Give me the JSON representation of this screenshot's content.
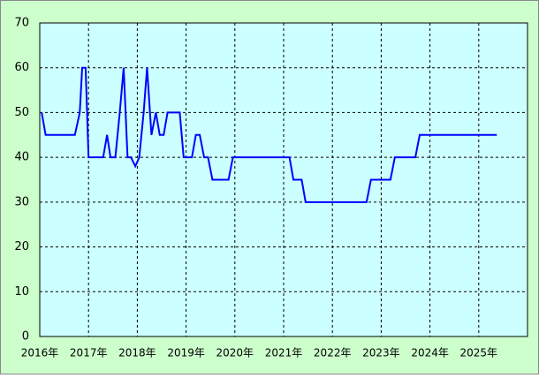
{
  "chart_data": {
    "type": "line",
    "x": [
      2016.04,
      2016.12,
      2016.72,
      2016.82,
      2016.87,
      2016.94,
      2017.0,
      2017.3,
      2017.38,
      2017.45,
      2017.55,
      2017.64,
      2017.72,
      2017.8,
      2017.87,
      2017.96,
      2018.04,
      2018.13,
      2018.2,
      2018.29,
      2018.38,
      2018.46,
      2018.54,
      2018.62,
      2018.87,
      2018.95,
      2019.12,
      2019.2,
      2019.28,
      2019.37,
      2019.45,
      2019.54,
      2019.87,
      2019.96,
      2021.12,
      2021.2,
      2021.37,
      2021.45,
      2022.7,
      2022.79,
      2023.19,
      2023.28,
      2023.7,
      2023.79,
      2025.37
    ],
    "series": [
      {
        "color": "#0000ff",
        "values": [
          50,
          45,
          45,
          50,
          60,
          60,
          40,
          40,
          45,
          40,
          40,
          50,
          60,
          40,
          40,
          38,
          40,
          50,
          60,
          45,
          50,
          45,
          45,
          50,
          50,
          40,
          40,
          45,
          45,
          40,
          40,
          35,
          35,
          40,
          40,
          35,
          35,
          30,
          30,
          35,
          35,
          40,
          40,
          45,
          45
        ]
      }
    ],
    "xlim": [
      2016,
      2026
    ],
    "xticks": [
      {
        "value": 2016,
        "label": "2016年"
      },
      {
        "value": 2017,
        "label": "2017年"
      },
      {
        "value": 2018,
        "label": "2018年"
      },
      {
        "value": 2019,
        "label": "2019年"
      },
      {
        "value": 2020,
        "label": "2020年"
      },
      {
        "value": 2021,
        "label": "2021年"
      },
      {
        "value": 2022,
        "label": "2022年"
      },
      {
        "value": 2023,
        "label": "2023年"
      },
      {
        "value": 2024,
        "label": "2024年"
      },
      {
        "value": 2025,
        "label": "2025年"
      }
    ],
    "ylim": [
      0,
      70
    ],
    "yticks": [
      0,
      10,
      20,
      30,
      40,
      50,
      60,
      70
    ],
    "grid": true
  }
}
